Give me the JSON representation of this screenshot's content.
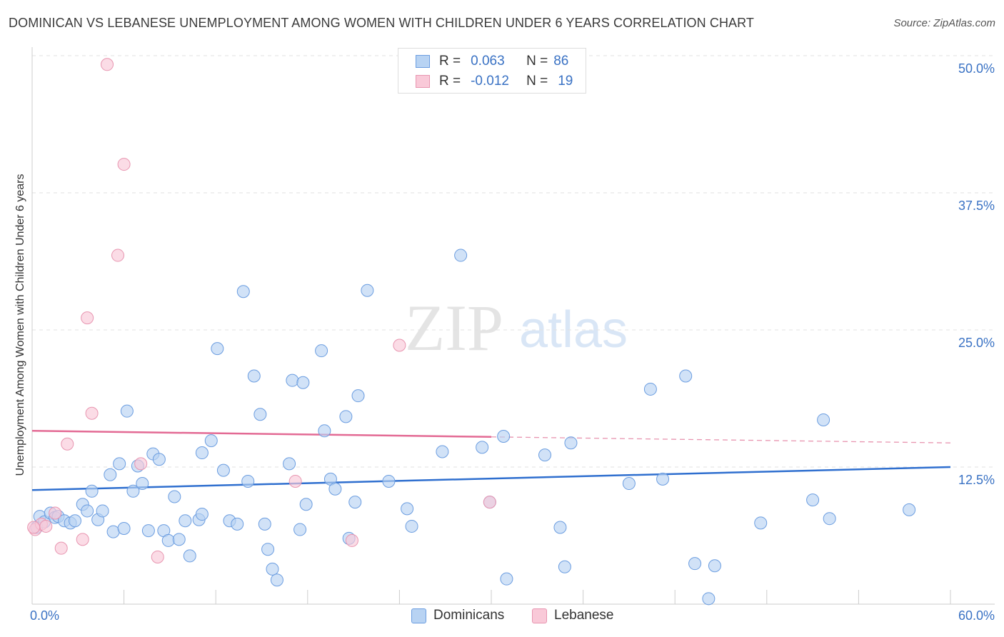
{
  "title": "DOMINICAN VS LEBANESE UNEMPLOYMENT AMONG WOMEN WITH CHILDREN UNDER 6 YEARS CORRELATION CHART",
  "source": "Source: ZipAtlas.com",
  "watermark": {
    "zip": "ZIP",
    "atlas": "atlas"
  },
  "legend": {
    "rows": [
      {
        "r_label": "R =",
        "r_value": "0.063",
        "n_label": "N =",
        "n_value": "86",
        "color": "#b8d3f3",
        "border": "#6b9de0"
      },
      {
        "r_label": "R =",
        "r_value": "-0.012",
        "n_label": "N =",
        "n_value": "19",
        "color": "#f9c9d8",
        "border": "#e895b0"
      }
    ]
  },
  "bottom_legend": [
    {
      "label": "Dominicans",
      "color": "#b8d3f3",
      "border": "#6b9de0"
    },
    {
      "label": "Lebanese",
      "color": "#f9c9d8",
      "border": "#e895b0"
    }
  ],
  "axis_text": {
    "ylabel": "Unemployment Among Women with Children Under 6 years",
    "x_min_label": "0.0%",
    "x_max_label": "60.0%",
    "y_tick_labels": [
      "12.5%",
      "25.0%",
      "37.5%",
      "50.0%"
    ]
  },
  "chart_data": {
    "type": "scatter",
    "title": "DOMINICAN VS LEBANESE UNEMPLOYMENT AMONG WOMEN WITH CHILDREN UNDER 6 YEARS CORRELATION CHART",
    "xlabel": "",
    "ylabel": "Unemployment Among Women with Children Under 6 years",
    "xlim": [
      0,
      60
    ],
    "ylim": [
      0,
      50
    ],
    "y_ticks": [
      12.5,
      25.0,
      37.5,
      50.0
    ],
    "grid": "horizontal dashed",
    "legend_position": "top-center",
    "series": [
      {
        "name": "Dominicans",
        "color": "#6b9de0",
        "fill": "#b8d3f3",
        "R": 0.063,
        "N": 86,
        "trend": {
          "x": [
            0,
            60
          ],
          "y": [
            10.4,
            12.5
          ],
          "style": "solid"
        },
        "points": [
          [
            0.3,
            7.0
          ],
          [
            0.5,
            8.0
          ],
          [
            0.8,
            7.5
          ],
          [
            1.2,
            8.3
          ],
          [
            1.5,
            7.9
          ],
          [
            1.7,
            8.0
          ],
          [
            2.1,
            7.6
          ],
          [
            2.5,
            7.4
          ],
          [
            2.8,
            7.6
          ],
          [
            3.3,
            9.1
          ],
          [
            3.6,
            8.5
          ],
          [
            3.9,
            10.3
          ],
          [
            4.3,
            7.7
          ],
          [
            4.6,
            8.5
          ],
          [
            5.1,
            11.8
          ],
          [
            5.3,
            6.6
          ],
          [
            5.7,
            12.8
          ],
          [
            6.0,
            6.9
          ],
          [
            6.2,
            17.6
          ],
          [
            6.6,
            10.3
          ],
          [
            6.9,
            12.6
          ],
          [
            7.2,
            11.0
          ],
          [
            7.6,
            6.7
          ],
          [
            7.9,
            13.7
          ],
          [
            8.3,
            13.2
          ],
          [
            8.6,
            6.7
          ],
          [
            8.9,
            5.8
          ],
          [
            9.3,
            9.8
          ],
          [
            9.6,
            5.9
          ],
          [
            10.0,
            7.6
          ],
          [
            10.3,
            4.4
          ],
          [
            10.9,
            7.7
          ],
          [
            11.1,
            8.2
          ],
          [
            11.1,
            13.8
          ],
          [
            11.7,
            14.9
          ],
          [
            12.1,
            23.3
          ],
          [
            12.5,
            12.2
          ],
          [
            12.9,
            7.6
          ],
          [
            13.4,
            7.3
          ],
          [
            13.8,
            28.5
          ],
          [
            14.1,
            11.2
          ],
          [
            14.5,
            20.8
          ],
          [
            14.9,
            17.3
          ],
          [
            15.2,
            7.3
          ],
          [
            15.4,
            5.0
          ],
          [
            15.7,
            3.2
          ],
          [
            16.0,
            2.2
          ],
          [
            16.8,
            12.8
          ],
          [
            17.0,
            20.4
          ],
          [
            17.5,
            6.8
          ],
          [
            17.7,
            20.2
          ],
          [
            17.9,
            9.1
          ],
          [
            18.9,
            23.1
          ],
          [
            19.1,
            15.8
          ],
          [
            19.5,
            11.4
          ],
          [
            19.8,
            10.5
          ],
          [
            20.5,
            17.1
          ],
          [
            20.7,
            6.0
          ],
          [
            21.1,
            9.3
          ],
          [
            21.3,
            19.0
          ],
          [
            21.9,
            28.6
          ],
          [
            23.3,
            11.2
          ],
          [
            24.5,
            8.7
          ],
          [
            24.8,
            7.1
          ],
          [
            26.8,
            13.9
          ],
          [
            28.0,
            31.8
          ],
          [
            29.4,
            14.3
          ],
          [
            29.9,
            9.3
          ],
          [
            30.8,
            15.3
          ],
          [
            31.0,
            2.3
          ],
          [
            33.5,
            13.6
          ],
          [
            34.5,
            7.0
          ],
          [
            34.8,
            3.4
          ],
          [
            35.2,
            14.7
          ],
          [
            39.0,
            11.0
          ],
          [
            40.4,
            19.6
          ],
          [
            41.2,
            11.4
          ],
          [
            42.7,
            20.8
          ],
          [
            43.3,
            3.7
          ],
          [
            44.2,
            0.5
          ],
          [
            44.6,
            3.5
          ],
          [
            47.6,
            7.4
          ],
          [
            51.0,
            9.5
          ],
          [
            51.7,
            16.8
          ],
          [
            52.1,
            7.8
          ],
          [
            57.3,
            8.6
          ]
        ]
      },
      {
        "name": "Lebanese",
        "color": "#e895b0",
        "fill": "#f9c9d8",
        "R": -0.012,
        "N": 19,
        "trend": {
          "x": [
            0,
            60
          ],
          "y": [
            15.8,
            14.7
          ],
          "style": "solid to x=30, dashed beyond"
        },
        "points": [
          [
            0.2,
            6.8
          ],
          [
            0.6,
            7.3
          ],
          [
            0.9,
            7.1
          ],
          [
            1.5,
            8.3
          ],
          [
            1.9,
            5.1
          ],
          [
            2.3,
            14.6
          ],
          [
            3.3,
            5.9
          ],
          [
            3.6,
            26.1
          ],
          [
            3.9,
            17.4
          ],
          [
            4.9,
            49.2
          ],
          [
            5.6,
            31.8
          ],
          [
            6.0,
            40.1
          ],
          [
            7.1,
            12.8
          ],
          [
            8.2,
            4.3
          ],
          [
            17.2,
            11.2
          ],
          [
            20.9,
            5.8
          ],
          [
            24.0,
            23.6
          ],
          [
            29.9,
            9.3
          ],
          [
            0.1,
            7.0
          ]
        ]
      }
    ]
  }
}
